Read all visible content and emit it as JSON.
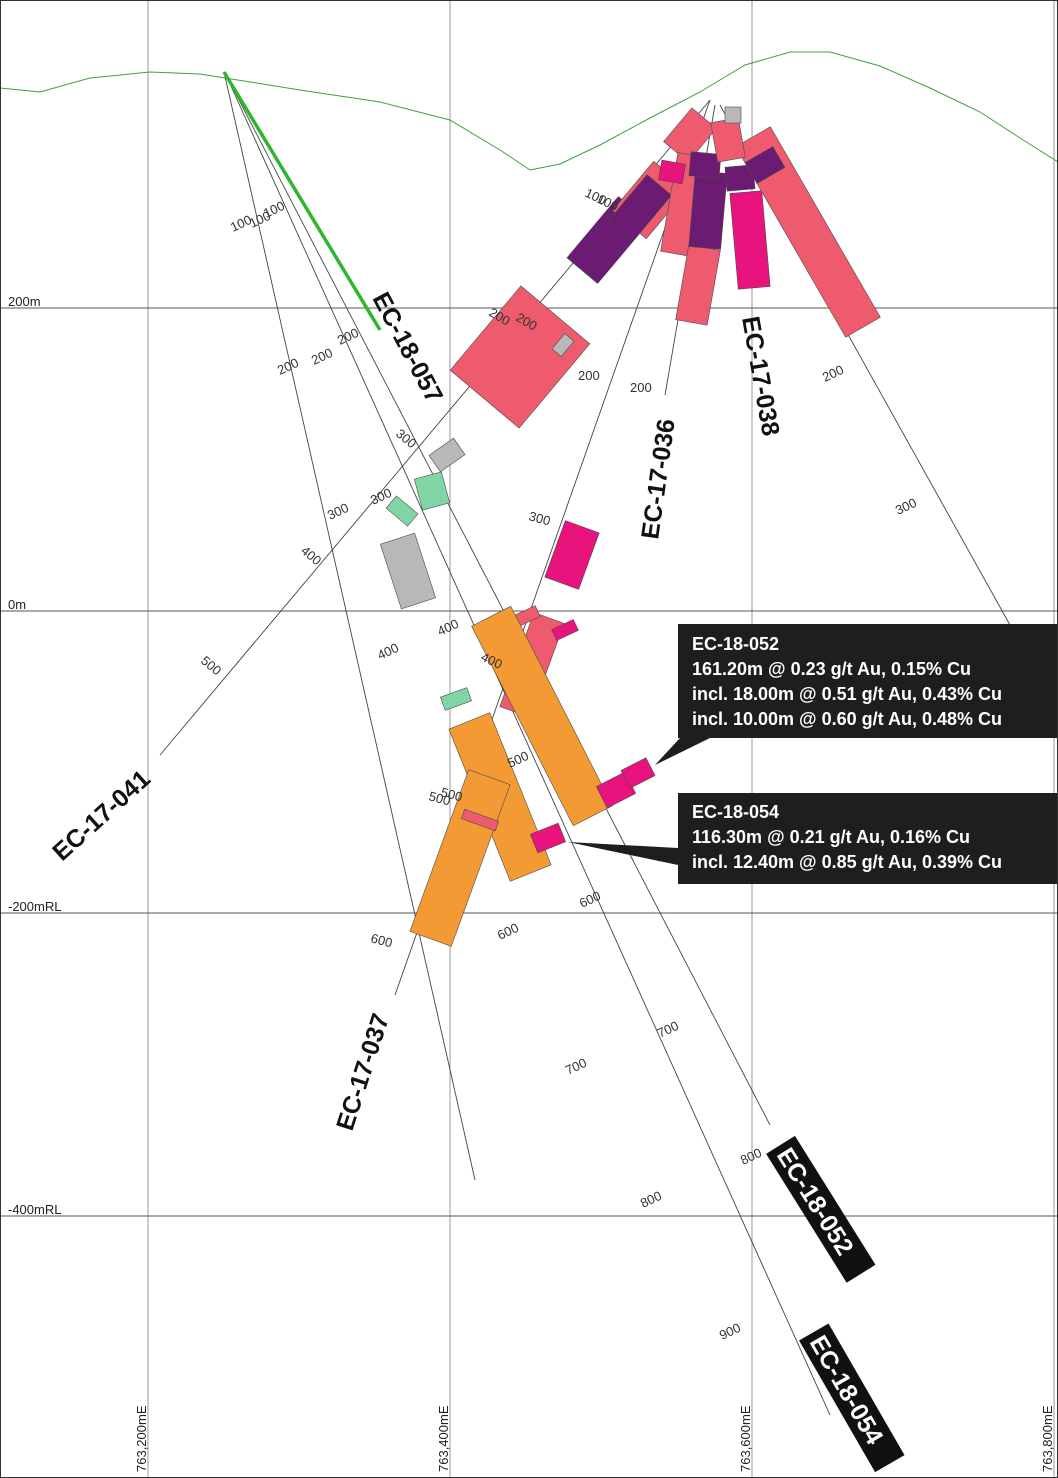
{
  "axes": {
    "rl_labels": [
      "200m",
      "0m",
      "-200mRL",
      "-400mRL"
    ],
    "easting_labels": [
      "763,200mE",
      "763,400mE",
      "763,600mE",
      "763,800mE"
    ]
  },
  "holes": {
    "ec18057": "EC-18-057",
    "ec17036": "EC-17-036",
    "ec17038": "EC-17-038",
    "ec17041": "EC-17-041",
    "ec17037": "EC-17-037",
    "ec18052": "EC-18-052",
    "ec18054": "EC-18-054"
  },
  "depth_ticks": [
    "100",
    "100",
    "100",
    "200",
    "200",
    "200",
    "300",
    "300",
    "300",
    "400",
    "500",
    "100",
    "100",
    "200",
    "200",
    "200",
    "200",
    "200",
    "300",
    "300",
    "400",
    "400",
    "400",
    "500",
    "500",
    "500",
    "600",
    "600",
    "600",
    "700",
    "700",
    "800",
    "800",
    "900"
  ],
  "callouts": {
    "ec18052": {
      "title": "EC-18-052",
      "line1": "161.20m @ 0.23 g/t Au, 0.15% Cu",
      "line2": "incl. 18.00m @ 0.51 g/t Au, 0.43% Cu",
      "line3": "incl. 10.00m @ 0.60 g/t Au, 0.48% Cu"
    },
    "ec18054": {
      "title": "EC-18-054",
      "line1": "116.30m @ 0.21 g/t Au, 0.16% Cu",
      "line2": "incl. 12.40m @ 0.85 g/t Au, 0.39% Cu"
    }
  },
  "colors": {
    "grade_salmon": "#ef5b6e",
    "grade_magenta": "#e8137d",
    "grade_purple": "#6b1b72",
    "grade_orange": "#f39a35",
    "grade_green": "#7fd6a4",
    "grade_grey": "#b8b8b8",
    "topography": "#3fa03f",
    "ec18057_trace": "#2fb52f"
  }
}
